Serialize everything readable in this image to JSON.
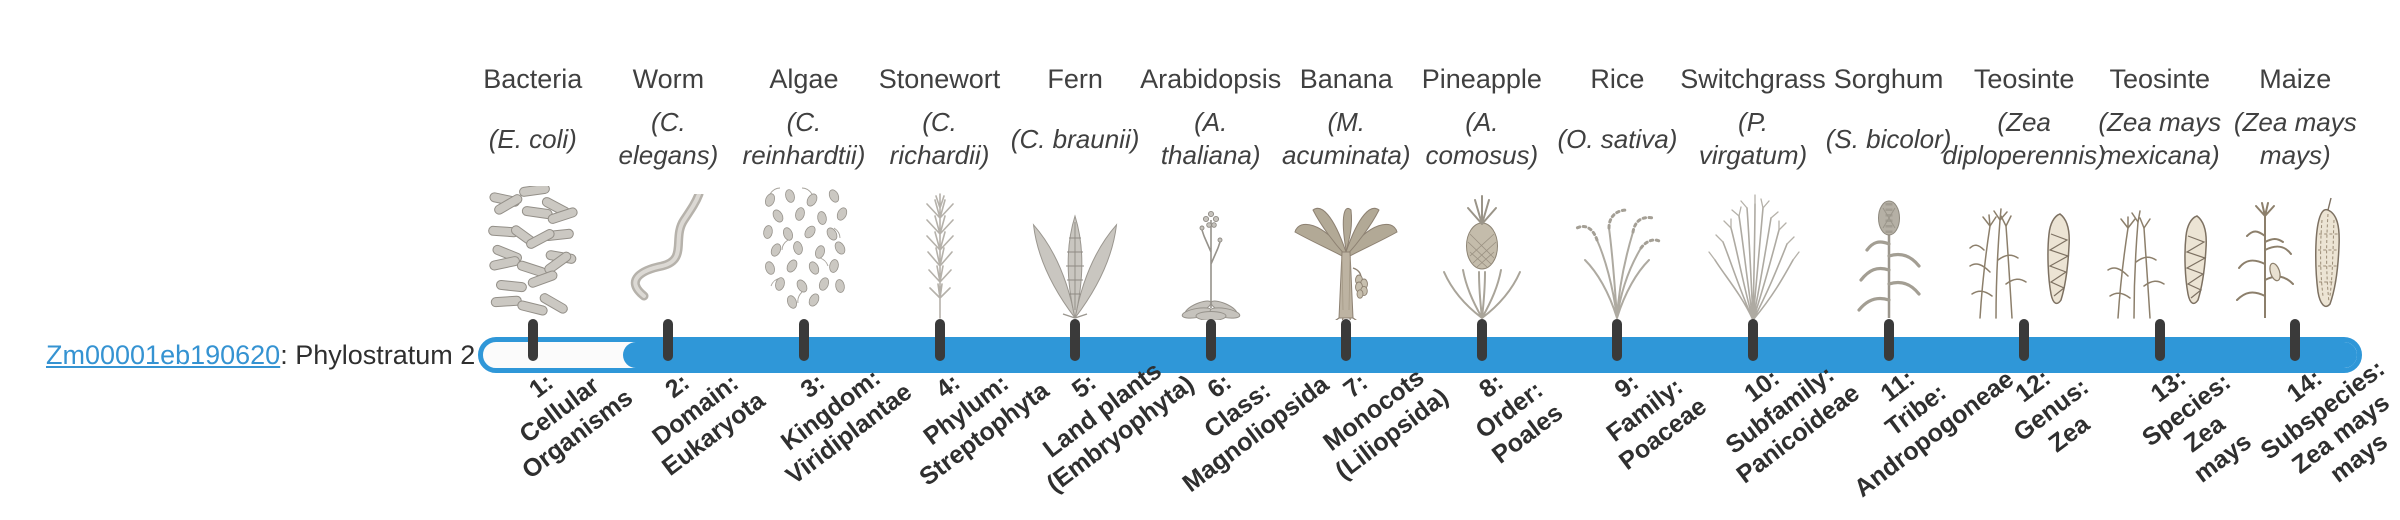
{
  "gene": {
    "id": "Zm00001eb190620",
    "phylostratum_label": ": Phylostratum 2",
    "phylostratum": 2
  },
  "colors": {
    "bar_blue": "#2f97d8",
    "tick_dark": "#3a3a3a",
    "link_blue": "#3593d2",
    "text_dark": "#404040"
  },
  "organisms": [
    {
      "name": "Bacteria",
      "sci": "(E. coli)",
      "icon": "bacteria-icon"
    },
    {
      "name": "Worm",
      "sci": "(C. elegans)",
      "icon": "worm-icon"
    },
    {
      "name": "Algae",
      "sci": "(C.\nreinhardtii)",
      "icon": "algae-icon"
    },
    {
      "name": "Stonewort",
      "sci": "(C. richardii)",
      "icon": "stonewort-icon"
    },
    {
      "name": "Fern",
      "sci": "(C. braunii)",
      "icon": "fern-icon"
    },
    {
      "name": "Arabidopsis",
      "sci": "(A. thaliana)",
      "icon": "arabidopsis-icon"
    },
    {
      "name": "Banana",
      "sci": "(M.\nacuminata)",
      "icon": "banana-icon"
    },
    {
      "name": "Pineapple",
      "sci": "(A.\ncomosus)",
      "icon": "pineapple-icon"
    },
    {
      "name": "Rice",
      "sci": "(O. sativa)",
      "icon": "rice-icon"
    },
    {
      "name": "Switchgrass",
      "sci": "(P.\nvirgatum)",
      "icon": "switchgrass-icon"
    },
    {
      "name": "Sorghum",
      "sci": "(S. bicolor)",
      "icon": "sorghum-icon"
    },
    {
      "name": "Teosinte",
      "sci": "(Zea\ndiploperennis)",
      "icon": "teosinte-diploperennis-icon"
    },
    {
      "name": "Teosinte",
      "sci": "(Zea mays\nmexicana)",
      "icon": "teosinte-mexicana-icon"
    },
    {
      "name": "Maize",
      "sci": "(Zea mays\nmays)",
      "icon": "maize-icon"
    }
  ],
  "strata": [
    {
      "label": "1:\nCellular\nOrganisms"
    },
    {
      "label": "2:\nDomain:\nEukaryota"
    },
    {
      "label": "3:\nKingdom:\nViridiplantae"
    },
    {
      "label": "4:\nPhylum:\nStreptophyta"
    },
    {
      "label": "5:\nLand plants\n(Embryophyta)"
    },
    {
      "label": "6:\nClass:\nMagnoliopsida"
    },
    {
      "label": "7:\nMonocots\n(Liliopsida)"
    },
    {
      "label": "8:\nOrder:\nPoales"
    },
    {
      "label": "9:\nFamily:\nPoaceae"
    },
    {
      "label": "10:\nSubfamily:\nPanicoideae"
    },
    {
      "label": "11:\nTribe:\nAndropogoneae"
    },
    {
      "label": "12:\nGenus:\nZea"
    },
    {
      "label": "13:\nSpecies:\nZea\nmays"
    },
    {
      "label": "14:\nSubspecies:\nZea mays\nmays"
    }
  ]
}
